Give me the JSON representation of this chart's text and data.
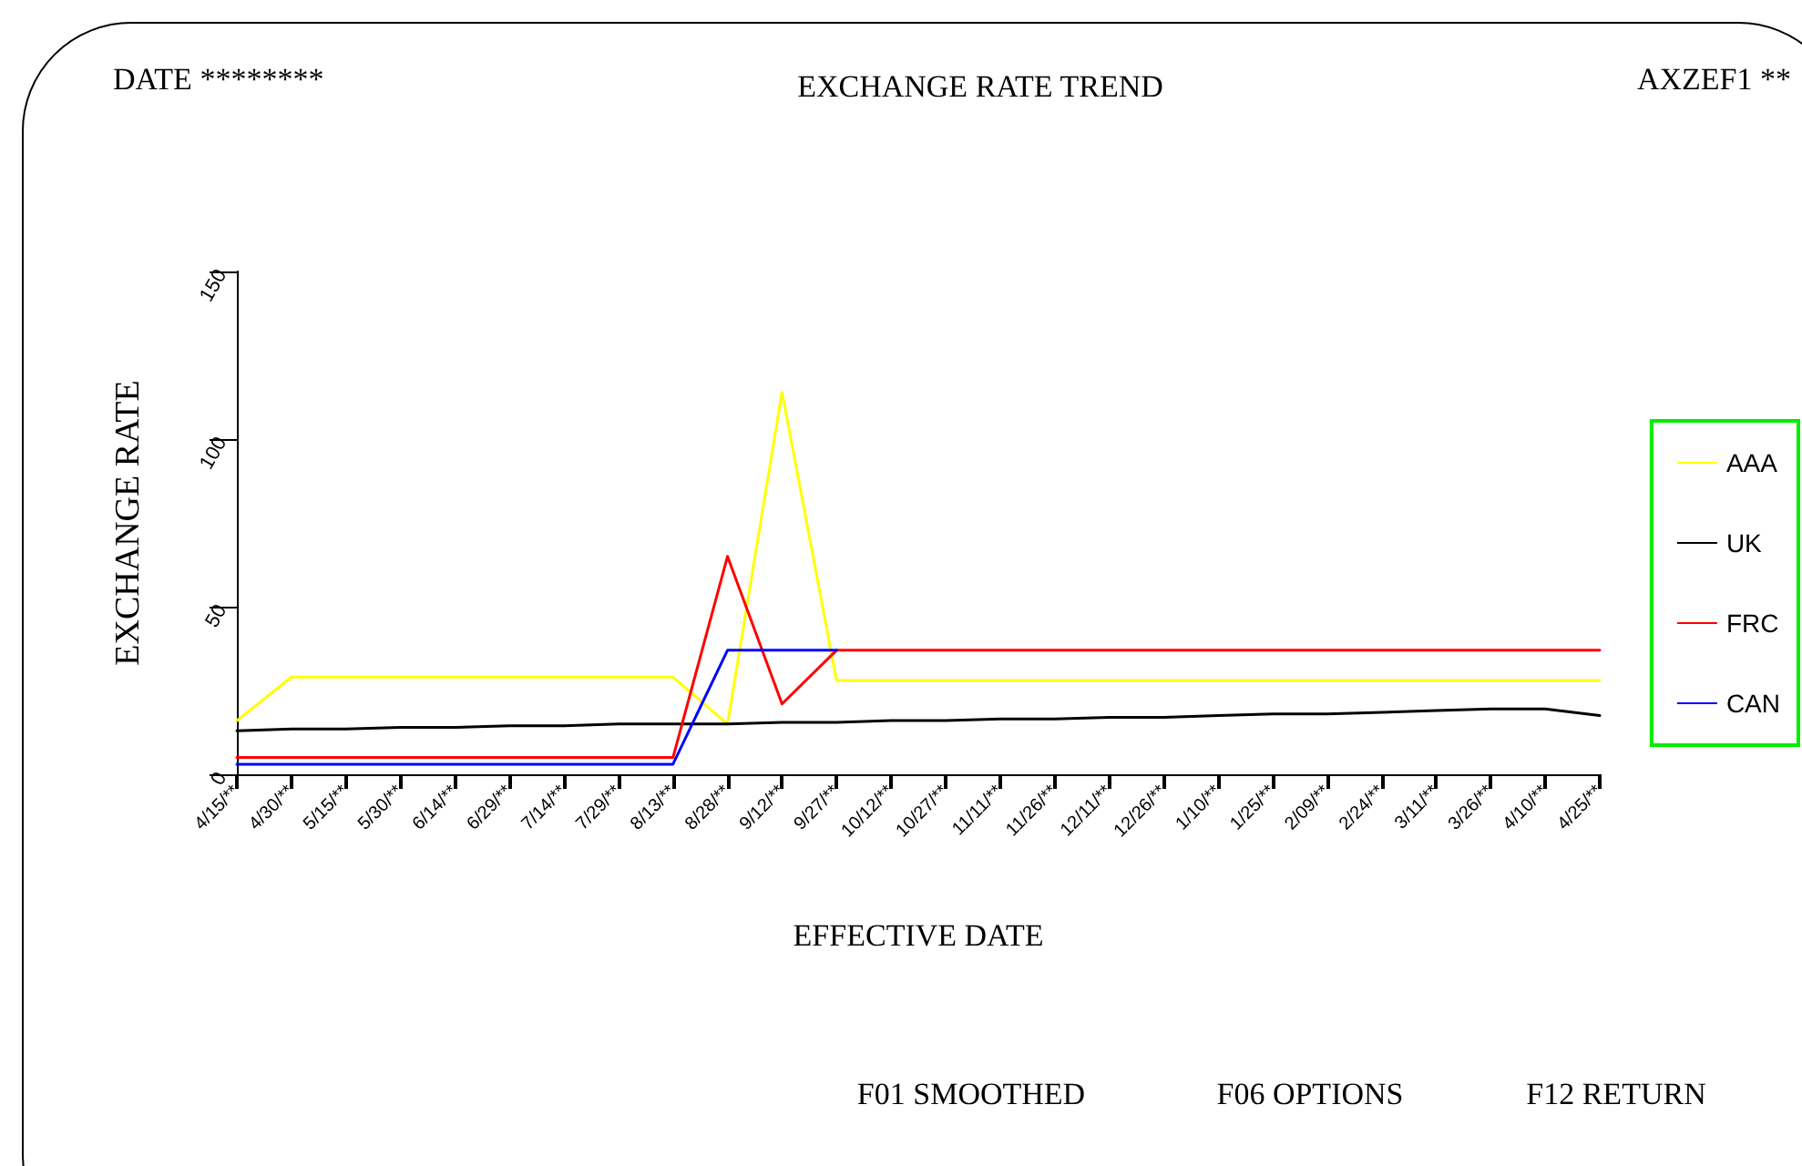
{
  "chart_data": {
    "type": "line",
    "title": "EXCHANGE RATE TREND",
    "xlabel": "EFFECTIVE DATE",
    "ylabel": "EXCHANGE RATE",
    "annotations": [
      "DATE ********",
      "AXZEF1 **",
      "F01 SMOOTHED",
      "F06 OPTIONS",
      "F12 RETURN"
    ],
    "categories": [
      "4/15/**",
      "4/30/**",
      "5/15/**",
      "5/30/**",
      "6/14/**",
      "6/29/**",
      "7/14/**",
      "7/29/**",
      "8/13/**",
      "8/28/**",
      "9/12/**",
      "9/27/**",
      "10/12/**",
      "10/27/**",
      "11/11/**",
      "11/26/**",
      "12/11/**",
      "12/26/**",
      "1/10/**",
      "1/25/**",
      "2/09/**",
      "2/24/**",
      "3/11/**",
      "3/26/**",
      "4/10/**",
      "4/25/**"
    ],
    "series": [
      {
        "name": "AAA",
        "color": "#ffff00",
        "values": [
          16,
          29,
          29,
          29,
          29,
          29,
          29,
          29,
          29,
          15,
          114,
          28,
          28,
          28,
          28,
          28,
          28,
          28,
          28,
          28,
          28,
          28,
          28,
          28,
          28,
          28
        ]
      },
      {
        "name": "UK",
        "color": "#000000",
        "values": [
          13,
          13.5,
          13.5,
          14,
          14,
          14.5,
          14.5,
          15,
          15,
          15,
          15.5,
          15.5,
          16,
          16,
          16.5,
          16.5,
          17,
          17,
          17.5,
          18,
          18,
          18.5,
          19,
          19.5,
          19.5,
          17.5
        ]
      },
      {
        "name": "FRC",
        "color": "#ff0000",
        "values": [
          5,
          5,
          5,
          5,
          5,
          5,
          5,
          5,
          5,
          65,
          21,
          37,
          37,
          37,
          37,
          37,
          37,
          37,
          37,
          37,
          37,
          37,
          37,
          37,
          37,
          37
        ]
      },
      {
        "name": "CAN",
        "color": "#0000ff",
        "values": [
          3,
          3,
          3,
          3,
          3,
          3,
          3,
          3,
          3,
          37,
          37,
          37,
          null,
          null,
          null,
          null,
          null,
          null,
          null,
          null,
          null,
          null,
          null,
          null,
          null,
          null
        ]
      }
    ],
    "ylim": [
      0,
      150
    ],
    "yticks": [
      0,
      50,
      100,
      150
    ],
    "grid": false,
    "legend": "right",
    "marker": "none"
  }
}
